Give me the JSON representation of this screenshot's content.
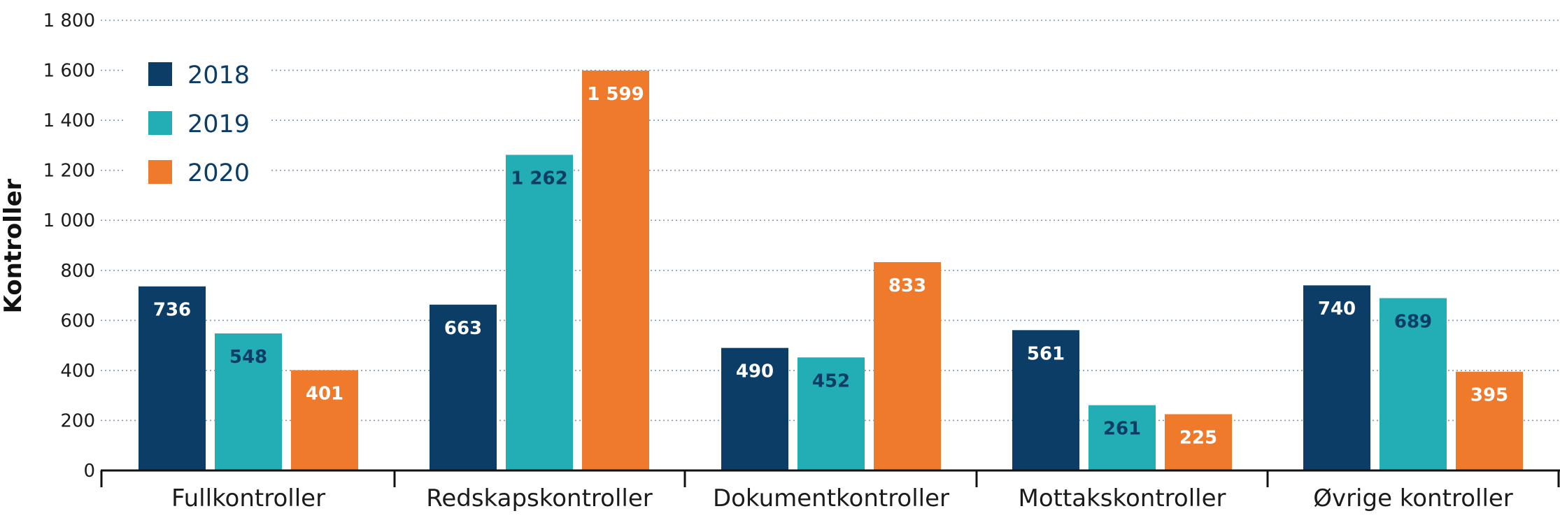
{
  "chart_data": {
    "type": "bar",
    "title": "",
    "xlabel": "",
    "ylabel": "Kontroller",
    "ylim": [
      0,
      1800
    ],
    "yticks": [
      0,
      200,
      400,
      600,
      800,
      1000,
      1200,
      1400,
      1600,
      1800
    ],
    "ytick_labels": [
      "0",
      "200",
      "400",
      "600",
      "800",
      "1 000",
      "1 200",
      "1 400",
      "1 600",
      "1 800"
    ],
    "grid": true,
    "legend_position": "top-left",
    "categories": [
      "Fullkontroller",
      "Redskapskontroller",
      "Dokumentkontroller",
      "Mottakskontroller",
      "Øvrige kontroller"
    ],
    "series": [
      {
        "name": "2018",
        "color": "#0b3d66",
        "label_color": "#ffffff",
        "values": [
          736,
          663,
          490,
          561,
          740
        ],
        "labels": [
          "736",
          "663",
          "490",
          "561",
          "740"
        ]
      },
      {
        "name": "2019",
        "color": "#23adb4",
        "label_color": "#0b3d66",
        "values": [
          548,
          1262,
          452,
          261,
          689
        ],
        "labels": [
          "548",
          "1 262",
          "452",
          "261",
          "689"
        ]
      },
      {
        "name": "2020",
        "color": "#ef7a2c",
        "label_color": "#ffffff",
        "values": [
          401,
          1599,
          833,
          225,
          395
        ],
        "labels": [
          "401",
          "1 599",
          "833",
          "225",
          "395"
        ]
      }
    ]
  }
}
